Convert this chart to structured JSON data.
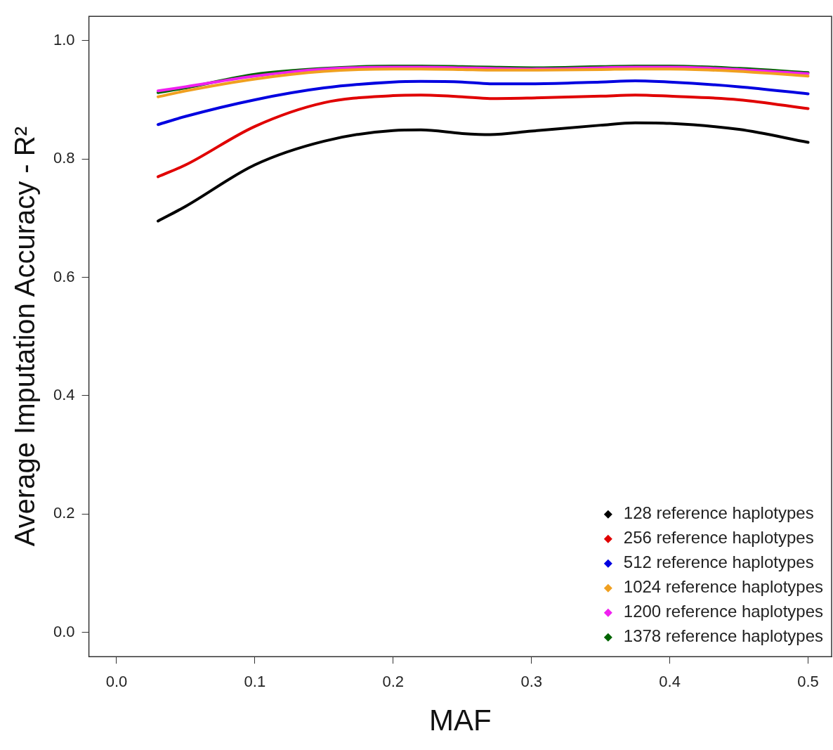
{
  "chart_data": {
    "type": "line",
    "xlabel": "MAF",
    "ylabel": "Average Imputation Accuracy - R²",
    "x": [
      0.03,
      0.05,
      0.1,
      0.15,
      0.2,
      0.22,
      0.25,
      0.27,
      0.3,
      0.35,
      0.375,
      0.4,
      0.45,
      0.5
    ],
    "series": [
      {
        "name": "128 reference haplotypes",
        "color": "#000000",
        "values": [
          0.695,
          0.72,
          0.79,
          0.83,
          0.848,
          0.849,
          0.843,
          0.841,
          0.847,
          0.857,
          0.861,
          0.86,
          0.85,
          0.828
        ]
      },
      {
        "name": "256 reference haplotypes",
        "color": "#e00000",
        "values": [
          0.77,
          0.79,
          0.855,
          0.895,
          0.907,
          0.908,
          0.905,
          0.902,
          0.903,
          0.906,
          0.908,
          0.906,
          0.9,
          0.885
        ]
      },
      {
        "name": "512 reference haplotypes",
        "color": "#0000e0",
        "values": [
          0.858,
          0.872,
          0.9,
          0.92,
          0.93,
          0.931,
          0.93,
          0.927,
          0.927,
          0.93,
          0.932,
          0.93,
          0.922,
          0.91
        ]
      },
      {
        "name": "1024 reference haplotypes",
        "color": "#f0a020",
        "values": [
          0.905,
          0.915,
          0.935,
          0.948,
          0.952,
          0.952,
          0.951,
          0.95,
          0.95,
          0.951,
          0.952,
          0.952,
          0.948,
          0.94
        ]
      },
      {
        "name": "1200 reference haplotypes",
        "color": "#f020f0",
        "values": [
          0.915,
          0.922,
          0.94,
          0.952,
          0.955,
          0.955,
          0.954,
          0.953,
          0.952,
          0.954,
          0.955,
          0.955,
          0.951,
          0.944
        ]
      },
      {
        "name": "1378 reference haplotypes",
        "color": "#006400",
        "values": [
          0.912,
          0.92,
          0.943,
          0.953,
          0.957,
          0.957,
          0.956,
          0.955,
          0.954,
          0.956,
          0.957,
          0.957,
          0.953,
          0.946
        ]
      }
    ],
    "xlim": [
      -0.02,
      0.517
    ],
    "ylim": [
      -0.041,
      1.041
    ],
    "xticks": [
      {
        "value": 0,
        "label": "0.0"
      },
      0.1,
      0.2,
      0.3,
      0.4,
      0.5
    ],
    "yticks": [
      {
        "value": 0,
        "label": "0.0"
      },
      0.2,
      0.4,
      0.6,
      0.8,
      {
        "value": 1,
        "label": "1.0"
      }
    ],
    "grid": false,
    "legend": "bottom right",
    "marker": "none",
    "line_style": "solid"
  }
}
